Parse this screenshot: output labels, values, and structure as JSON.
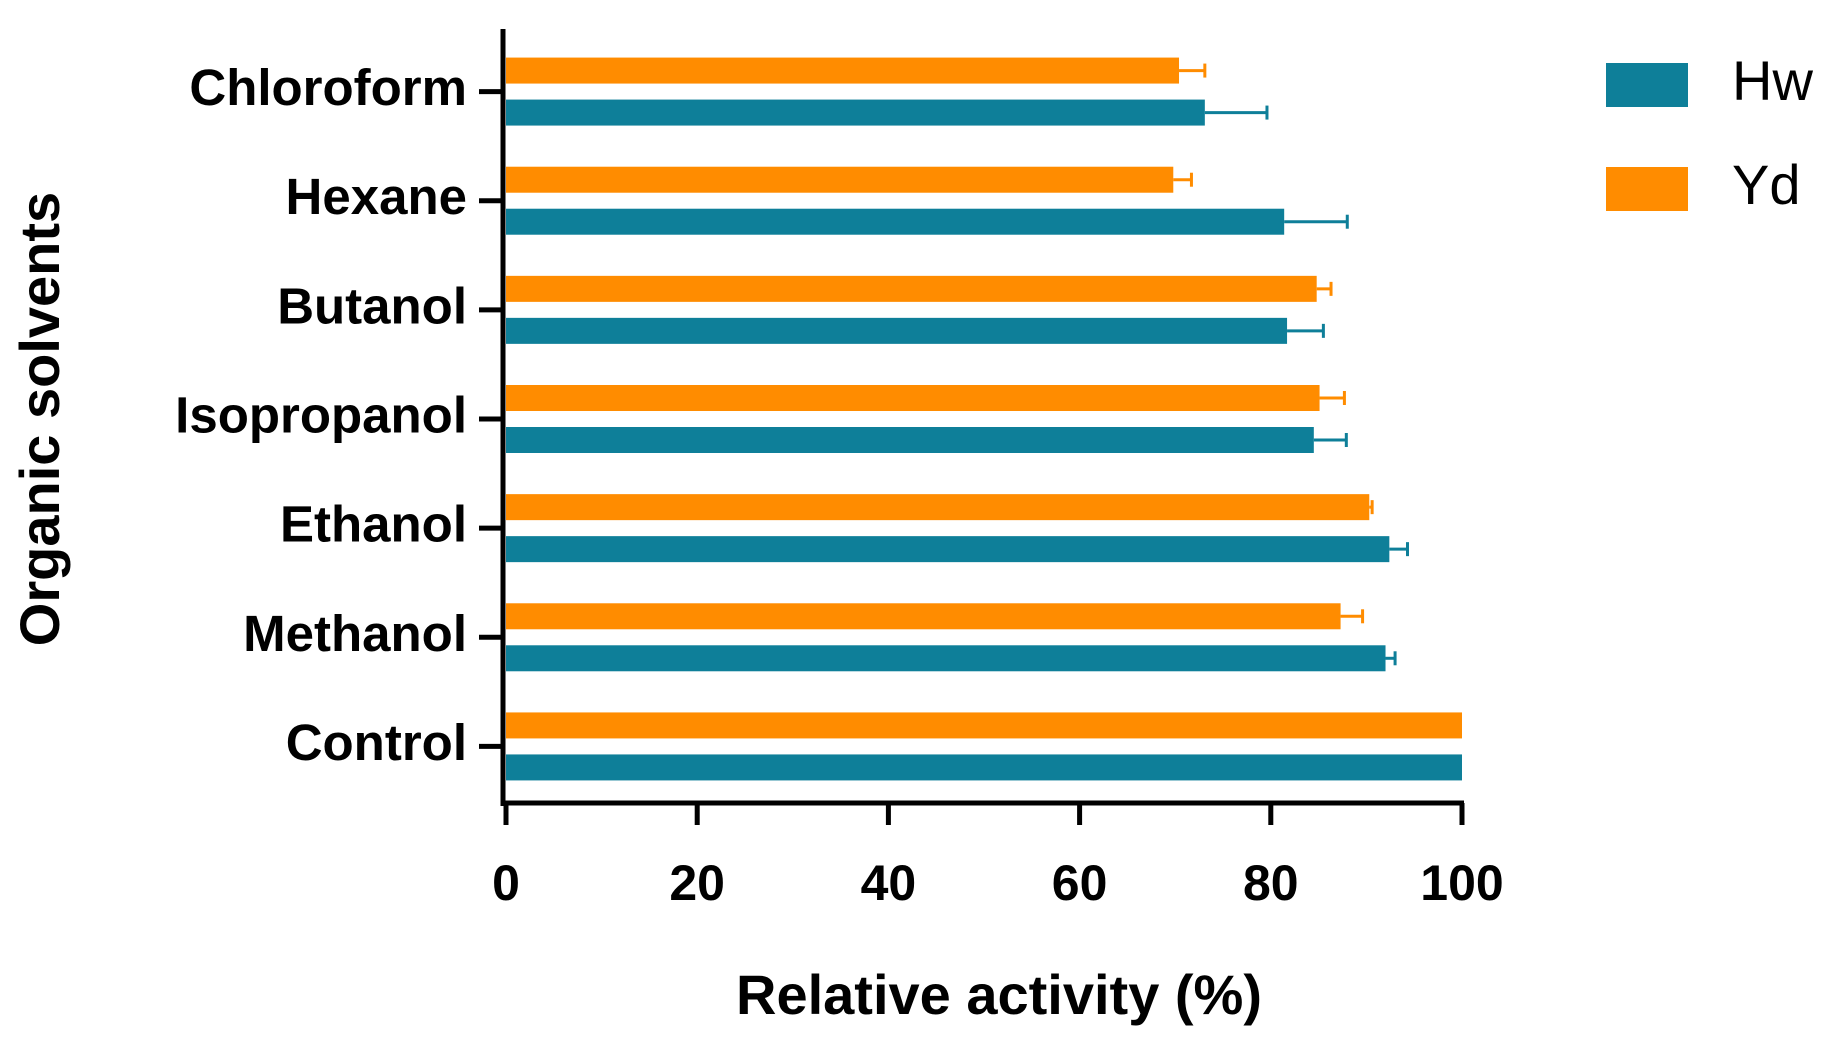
{
  "chart_data": {
    "type": "bar",
    "orientation": "horizontal",
    "x_label": "Relative activity (%)",
    "y_label": "Organic solvents",
    "categories": [
      "Chloroform",
      "Hexane",
      "Butanol",
      "Isopropanol",
      "Ethanol",
      "Methanol",
      "Control"
    ],
    "series": [
      {
        "name": "Hw",
        "color": "#0e7f99",
        "values": [
          73.1,
          81.4,
          81.7,
          84.5,
          92.4,
          92.0,
          100
        ],
        "errors": [
          6.5,
          6.6,
          3.8,
          3.4,
          1.9,
          1.0,
          0
        ]
      },
      {
        "name": "Yd",
        "color": "#ff8c00",
        "values": [
          70.4,
          69.8,
          84.8,
          85.1,
          90.3,
          87.3,
          100
        ],
        "errors": [
          2.7,
          1.9,
          1.5,
          2.6,
          0.3,
          2.3,
          0
        ]
      }
    ],
    "xlim": [
      0,
      100
    ],
    "xticks": [
      0,
      20,
      40,
      60,
      80,
      100
    ],
    "legend": "right-top"
  }
}
